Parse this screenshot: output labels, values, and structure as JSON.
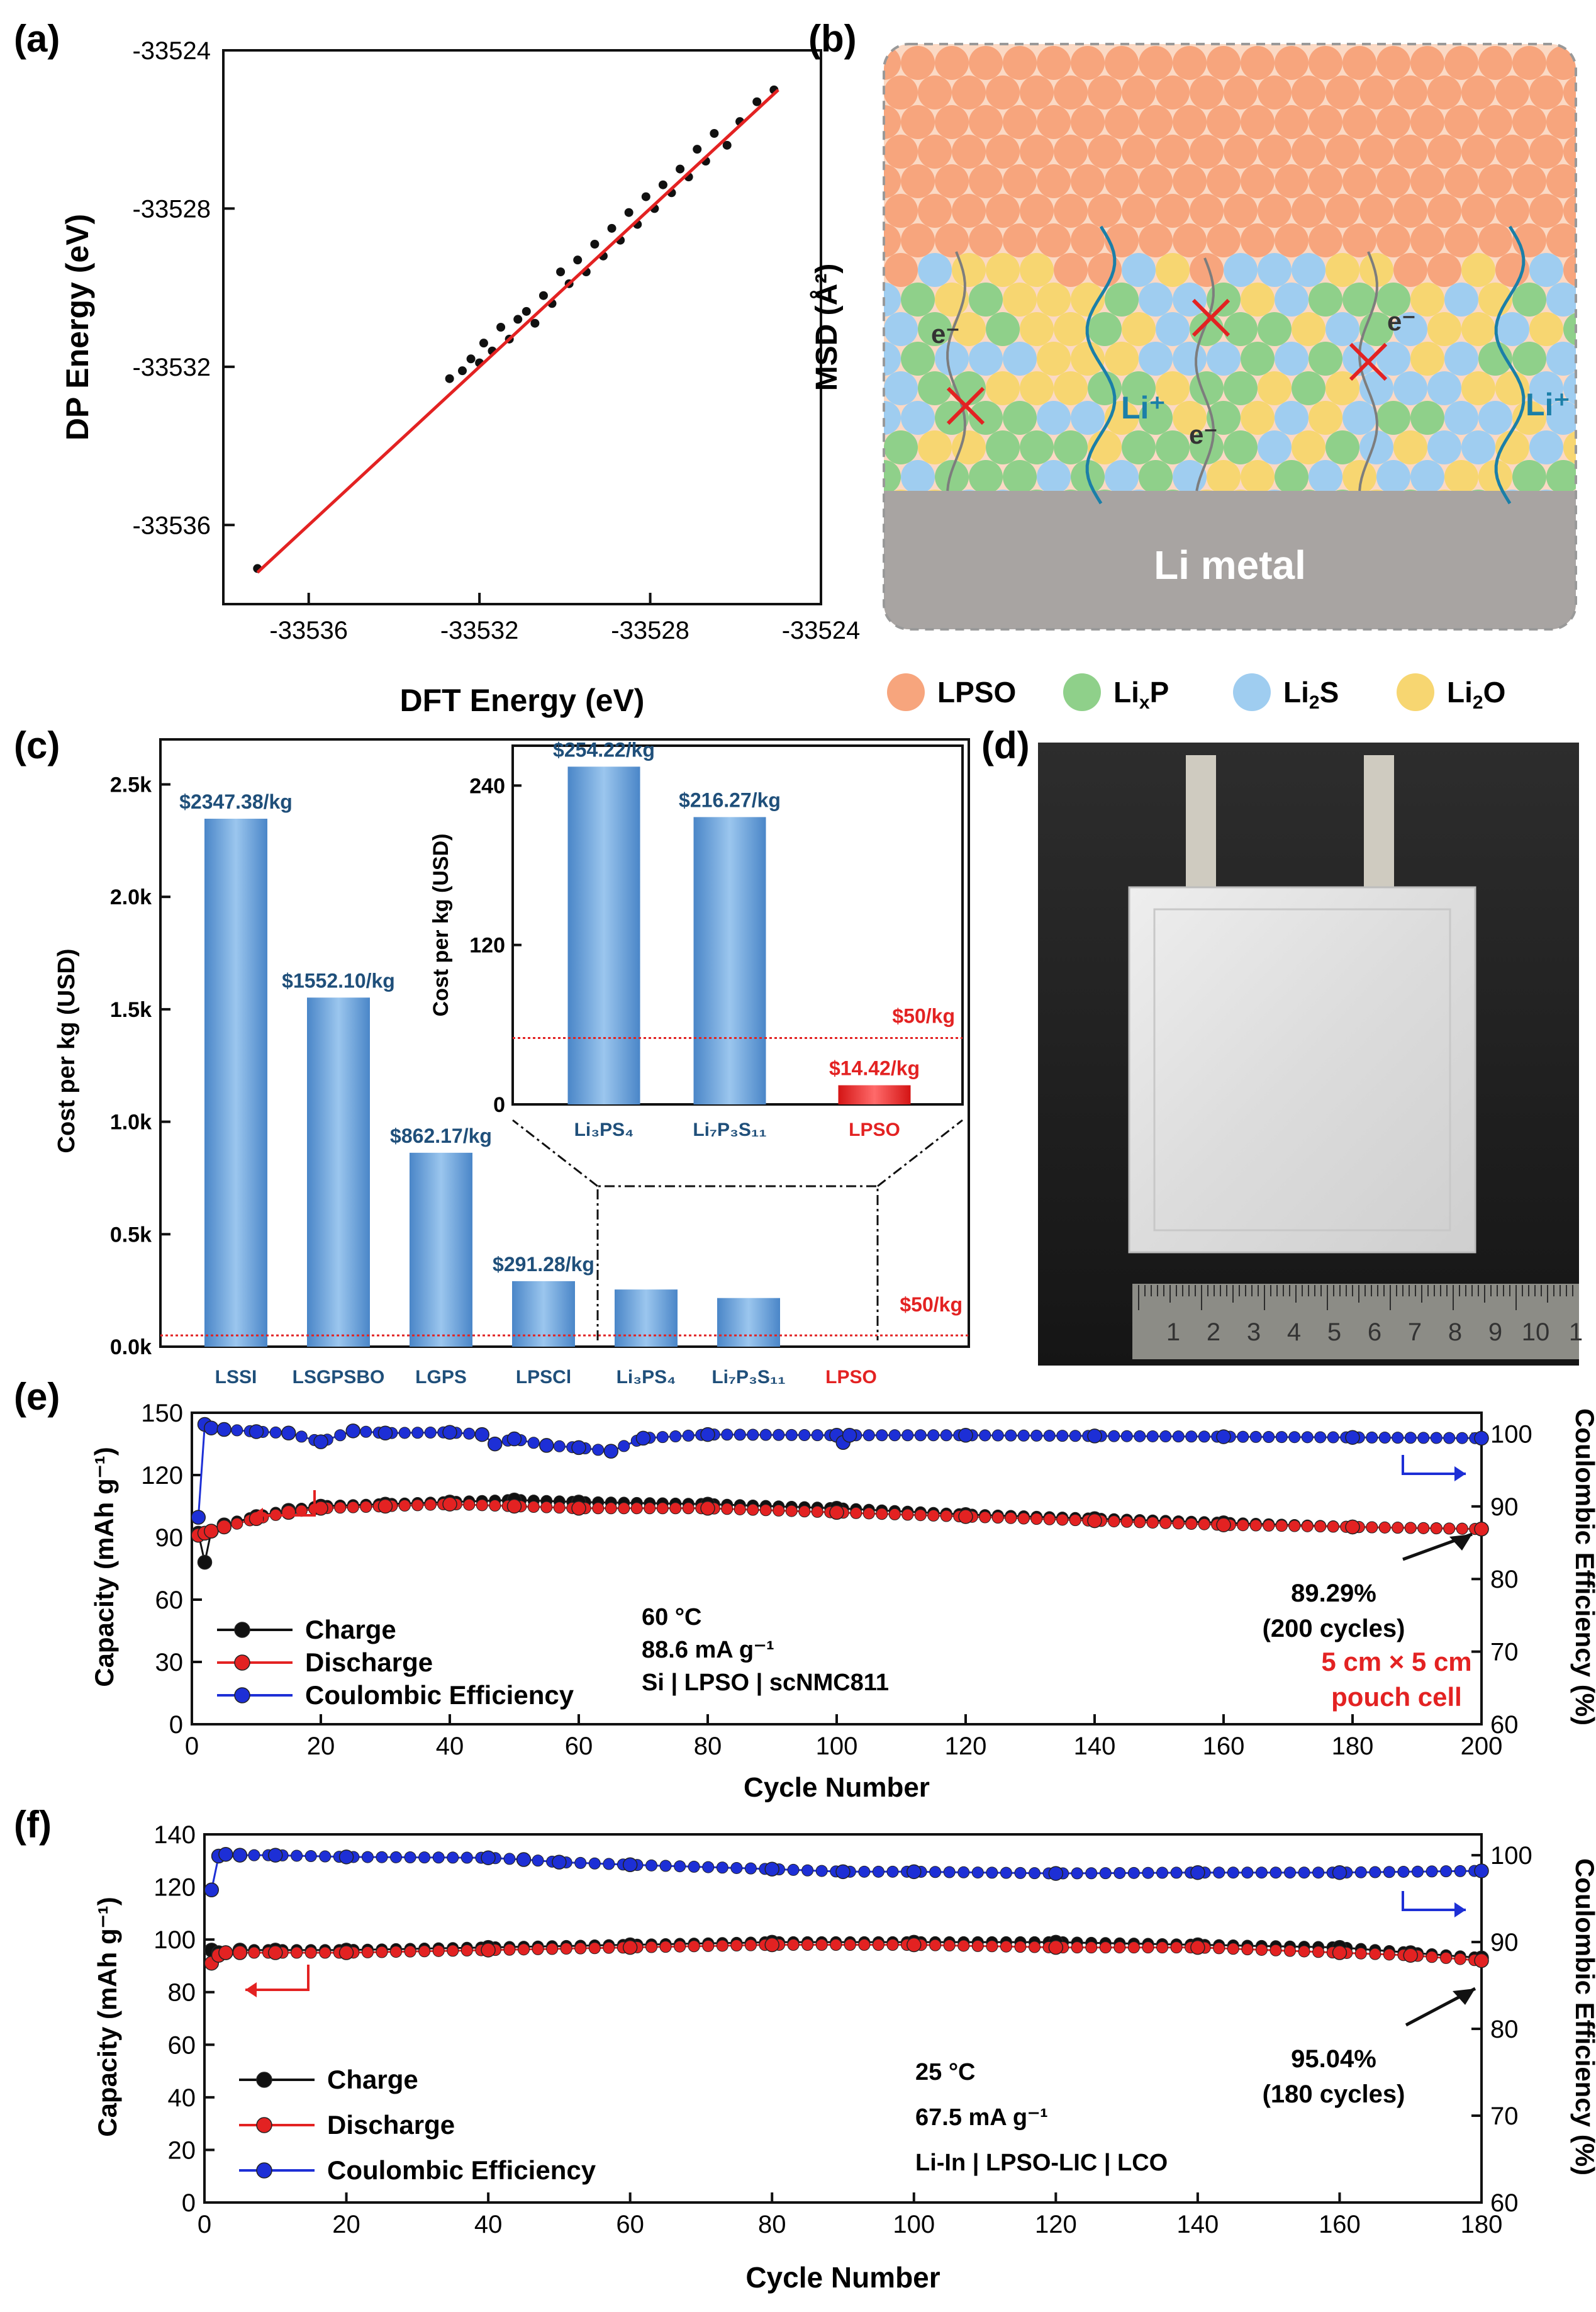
{
  "panels": {
    "a": {
      "label": "(a)",
      "xlabel": "DFT Energy (eV)",
      "ylabel": "DP Energy (eV)",
      "xticks": [
        -33536,
        -33532,
        -33528,
        -33524
      ],
      "yticks": [
        -33524,
        -33528,
        -33532,
        -33536
      ],
      "tick_labels_x": [
        "-33536",
        "-33532",
        "-33528",
        "-33524"
      ],
      "tick_labels_y": [
        "-33524",
        "-33528",
        "-33532",
        "-33536"
      ]
    },
    "b": {
      "label": "(b)",
      "axis_label": "MSD (Å²)",
      "metal_label": "Li metal",
      "e_label": "e⁻",
      "li_label": "Li⁺",
      "legend": [
        {
          "name": "LPSO",
          "color": "#f7a57d"
        },
        {
          "name": "LixP",
          "color": "#8fd08a"
        },
        {
          "name": "Li2S",
          "color": "#9fcdf0"
        },
        {
          "name": "Li2O",
          "color": "#f7d671"
        }
      ]
    },
    "c": {
      "label": "(c)",
      "ylabel": "Cost per kg (USD)",
      "threshold_label": "$50/kg",
      "ytick_labels": [
        "0.0k",
        "0.5k",
        "1.0k",
        "1.5k",
        "2.0k",
        "2.5k"
      ],
      "inset_ylabel": "Cost per kg (USD)",
      "inset_ytick_labels": [
        "0",
        "120",
        "240"
      ]
    },
    "d": {
      "label": "(d)",
      "ruler_numbers": [
        "1",
        "2",
        "3",
        "4",
        "5",
        "6",
        "7",
        "8",
        "9",
        "10",
        "1"
      ]
    },
    "e": {
      "label": "(e)",
      "xlabel": "Cycle Number",
      "ylabel_left": "Capacity (mAh g⁻¹)",
      "ylabel_right": "Coulombic Efficiency (%)",
      "xtick_labels": [
        "0",
        "20",
        "40",
        "60",
        "80",
        "100",
        "120",
        "140",
        "160",
        "180",
        "200"
      ],
      "ytick_labels_left": [
        "0",
        "30",
        "60",
        "90",
        "120",
        "150"
      ],
      "ytick_labels_right": [
        "60",
        "70",
        "80",
        "90",
        "100"
      ],
      "legend": [
        "Charge",
        "Discharge",
        "Coulombic Efficiency"
      ],
      "conditions": [
        "60 °C",
        "88.6 mA g⁻¹",
        "Si | LPSO | scNMC811"
      ],
      "note_red": [
        "5 cm × 5 cm",
        "pouch cell"
      ],
      "retention": [
        "89.29%",
        "(200 cycles)"
      ]
    },
    "f": {
      "label": "(f)",
      "xlabel": "Cycle Number",
      "ylabel_left": "Capacity (mAh g⁻¹)",
      "ylabel_right": "Coulombic Efficiency (%)",
      "xtick_labels": [
        "0",
        "20",
        "40",
        "60",
        "80",
        "100",
        "120",
        "140",
        "160",
        "180"
      ],
      "ytick_labels_left": [
        "0",
        "20",
        "40",
        "60",
        "80",
        "100",
        "120",
        "140"
      ],
      "ytick_labels_right": [
        "60",
        "70",
        "80",
        "90",
        "100"
      ],
      "legend": [
        "Charge",
        "Discharge",
        "Coulombic Efficiency"
      ],
      "conditions": [
        "25 °C",
        "67.5 mA g⁻¹",
        "Li-In | LPSO-LIC | LCO"
      ],
      "retention": [
        "95.04%",
        "(180 cycles)"
      ]
    }
  },
  "colors": {
    "red": "#e32222",
    "black": "#111111",
    "blue": "#1d2fd6",
    "bar_blue": "#6fa9e0",
    "bar_red": "#ee1c1c",
    "cost_label": "#1f4f7a"
  },
  "chart_data": [
    {
      "id": "a",
      "type": "scatter",
      "xlabel": "DFT Energy (eV)",
      "ylabel": "DP Energy (eV)",
      "xlim": [
        -33538,
        -33524
      ],
      "ylim": [
        -33538,
        -33524
      ],
      "fit_line": {
        "x": [
          -33537.2,
          -33525
        ],
        "y": [
          -33537.2,
          -33525
        ]
      },
      "points": [
        [
          -33537.2,
          -33537.1
        ],
        [
          -33532.7,
          -33532.3
        ],
        [
          -33532.4,
          -33532.1
        ],
        [
          -33532.2,
          -33531.8
        ],
        [
          -33532.0,
          -33531.9
        ],
        [
          -33531.9,
          -33531.4
        ],
        [
          -33531.7,
          -33531.6
        ],
        [
          -33531.5,
          -33531.0
        ],
        [
          -33531.3,
          -33531.3
        ],
        [
          -33531.1,
          -33530.8
        ],
        [
          -33530.9,
          -33530.6
        ],
        [
          -33530.7,
          -33530.9
        ],
        [
          -33530.5,
          -33530.2
        ],
        [
          -33530.3,
          -33530.4
        ],
        [
          -33530.1,
          -33529.6
        ],
        [
          -33529.9,
          -33529.9
        ],
        [
          -33529.7,
          -33529.3
        ],
        [
          -33529.5,
          -33529.6
        ],
        [
          -33529.3,
          -33528.9
        ],
        [
          -33529.1,
          -33529.2
        ],
        [
          -33528.9,
          -33528.5
        ],
        [
          -33528.7,
          -33528.8
        ],
        [
          -33528.5,
          -33528.1
        ],
        [
          -33528.3,
          -33528.4
        ],
        [
          -33528.1,
          -33527.7
        ],
        [
          -33527.9,
          -33528.0
        ],
        [
          -33527.7,
          -33527.4
        ],
        [
          -33527.5,
          -33527.6
        ],
        [
          -33527.3,
          -33527.0
        ],
        [
          -33527.1,
          -33527.2
        ],
        [
          -33526.9,
          -33526.5
        ],
        [
          -33526.7,
          -33526.8
        ],
        [
          -33526.5,
          -33526.1
        ],
        [
          -33526.2,
          -33526.4
        ],
        [
          -33525.9,
          -33525.8
        ],
        [
          -33525.5,
          -33525.3
        ],
        [
          -33525.1,
          -33525.0
        ]
      ]
    },
    {
      "id": "c",
      "type": "bar",
      "ylabel": "Cost per kg (USD)",
      "categories": [
        "LSSI",
        "LSGPSBO",
        "LGPS",
        "LPSCl",
        "Li3PS4",
        "Li7P3S11",
        "LPSO"
      ],
      "category_labels": [
        "LSSI",
        "LSGPSBO",
        "LGPS",
        "LPSCl",
        "Li₃PS₄",
        "Li₇P₃S₁₁",
        "LPSO"
      ],
      "values": [
        2347.38,
        1552.1,
        862.17,
        291.28,
        254.22,
        216.27,
        14.42
      ],
      "value_labels": [
        "$2347.38/kg",
        "$1552.10/kg",
        "$862.17/kg",
        "$291.28/kg",
        "",
        "",
        ""
      ],
      "ylim": [
        0,
        2700
      ],
      "threshold": 50,
      "inset": {
        "categories": [
          "Li₃PS₄",
          "Li₇P₃S₁₁",
          "LPSO"
        ],
        "values": [
          254.22,
          216.27,
          14.42
        ],
        "value_labels": [
          "$254.22/kg",
          "$216.27/kg",
          "$14.42/kg"
        ],
        "ylim": [
          0,
          270
        ]
      }
    },
    {
      "id": "e",
      "type": "line",
      "xlabel": "Cycle Number",
      "xlim": [
        0,
        200
      ],
      "ylim_left": [
        0,
        150
      ],
      "ylim_right": [
        60,
        102.9
      ],
      "series": [
        {
          "name": "Charge",
          "axis": "left",
          "x": [
            1,
            2,
            3,
            5,
            10,
            15,
            20,
            30,
            40,
            50,
            60,
            80,
            100,
            120,
            140,
            160,
            180,
            200
          ],
          "y": [
            92,
            78,
            93,
            96,
            100,
            103,
            105,
            106,
            107,
            108,
            107,
            106,
            104,
            101,
            99,
            97,
            95,
            94
          ]
        },
        {
          "name": "Discharge",
          "axis": "left",
          "x": [
            1,
            2,
            3,
            5,
            10,
            15,
            20,
            30,
            40,
            50,
            60,
            80,
            100,
            120,
            140,
            160,
            180,
            200
          ],
          "y": [
            91,
            92,
            93,
            95,
            99,
            102,
            104,
            105,
            106,
            105,
            104,
            104,
            102,
            100,
            98,
            96,
            95,
            94
          ]
        },
        {
          "name": "Coulombic Efficiency",
          "axis": "right",
          "x": [
            1,
            2,
            3,
            5,
            10,
            15,
            20,
            25,
            30,
            40,
            45,
            47,
            50,
            55,
            60,
            65,
            70,
            80,
            100,
            101,
            102,
            120,
            140,
            160,
            180,
            200
          ],
          "y": [
            88.5,
            101.3,
            100.8,
            100.6,
            100.3,
            100.1,
            98.9,
            100.4,
            100.1,
            100.2,
            99.9,
            98.6,
            99.3,
            98.4,
            98.1,
            97.6,
            99.4,
            99.9,
            99.8,
            98.8,
            99.8,
            99.8,
            99.7,
            99.6,
            99.5,
            99.4
          ]
        }
      ]
    },
    {
      "id": "f",
      "type": "line",
      "xlabel": "Cycle Number",
      "xlim": [
        0,
        180
      ],
      "ylim_left": [
        0,
        140
      ],
      "ylim_right": [
        60,
        102.4
      ],
      "series": [
        {
          "name": "Charge",
          "axis": "left",
          "x": [
            1,
            2,
            3,
            5,
            10,
            20,
            40,
            60,
            80,
            100,
            120,
            140,
            160,
            170,
            180
          ],
          "y": [
            96,
            95,
            95,
            96,
            96,
            96,
            97,
            98,
            99,
            99,
            99,
            98,
            97,
            95,
            93
          ]
        },
        {
          "name": "Discharge",
          "axis": "left",
          "x": [
            1,
            2,
            3,
            5,
            10,
            20,
            40,
            60,
            80,
            100,
            120,
            140,
            160,
            170,
            180
          ],
          "y": [
            91,
            94,
            95,
            95,
            95,
            95,
            96,
            97,
            98,
            98,
            97,
            97,
            95,
            94,
            92
          ]
        },
        {
          "name": "Coulombic Efficiency",
          "axis": "right",
          "x": [
            1,
            2,
            3,
            5,
            10,
            20,
            40,
            45,
            50,
            60,
            80,
            90,
            100,
            120,
            140,
            160,
            180
          ],
          "y": [
            96.0,
            99.9,
            100.1,
            100.0,
            100.0,
            99.8,
            99.7,
            99.5,
            99.2,
            98.9,
            98.4,
            98.1,
            98.1,
            97.9,
            98.0,
            98.0,
            98.2
          ]
        }
      ]
    }
  ]
}
